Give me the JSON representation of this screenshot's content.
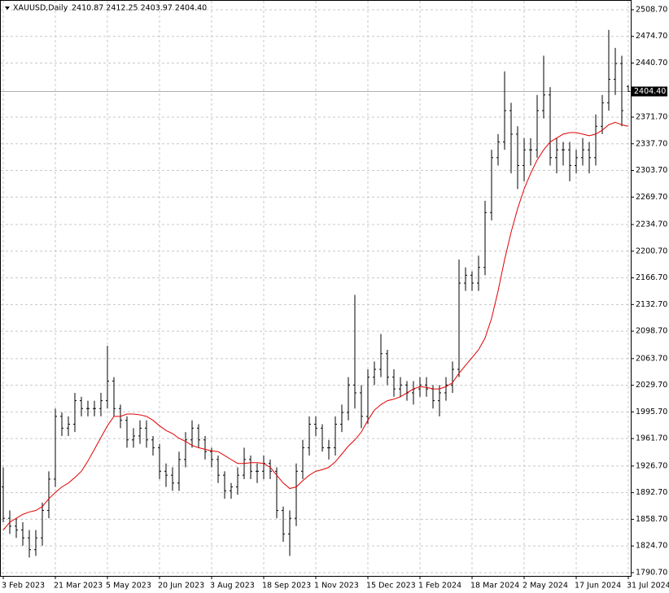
{
  "chart_data": {
    "type": "ohlc",
    "title": "XAUUSD,Daily",
    "subtitle": "2410.87 2412.25 2403.97 2404.40",
    "categories": [
      "3 Feb 2023",
      null,
      null,
      null,
      null,
      null,
      null,
      null,
      "21 Mar 2023",
      null,
      null,
      null,
      null,
      null,
      null,
      null,
      "5 May 2023",
      null,
      null,
      null,
      null,
      null,
      null,
      null,
      "20 Jun 2023",
      null,
      null,
      null,
      null,
      null,
      null,
      null,
      "3 Aug 2023",
      null,
      null,
      null,
      null,
      null,
      null,
      null,
      "18 Sep 2023",
      null,
      null,
      null,
      null,
      null,
      null,
      null,
      "1 Nov 2023",
      null,
      null,
      null,
      null,
      null,
      null,
      null,
      "15 Dec 2023",
      null,
      null,
      null,
      null,
      null,
      null,
      null,
      "1 Feb 2024",
      null,
      null,
      null,
      null,
      null,
      null,
      null,
      "18 Mar 2024",
      null,
      null,
      null,
      null,
      null,
      null,
      null,
      "2 May 2024",
      null,
      null,
      null,
      null,
      null,
      null,
      null,
      "17 Jun 2024",
      null,
      null,
      null,
      null,
      null,
      null,
      null,
      "31 Jul 2024"
    ],
    "open": [
      1900,
      1860,
      1850,
      1845,
      1835,
      1820,
      1835,
      1870,
      1910,
      1990,
      1975,
      1980,
      2010,
      2000,
      2000,
      2000,
      2010,
      2035,
      2000,
      1985,
      1960,
      1965,
      1975,
      1960,
      1950,
      1920,
      1915,
      1905,
      1935,
      1960,
      1975,
      1960,
      1945,
      1935,
      1915,
      1895,
      1900,
      1915,
      1935,
      1920,
      1920,
      1930,
      1920,
      1870,
      1840,
      1860,
      1920,
      1950,
      1980,
      1975,
      1950,
      1950,
      1980,
      1995,
      2030,
      2020,
      1990,
      2040,
      2050,
      2070,
      2040,
      2025,
      2030,
      2020,
      2025,
      2030,
      2025,
      2010,
      2020,
      2030,
      2050,
      2160,
      2170,
      2160,
      2180,
      2250,
      2320,
      2340,
      2380,
      2350,
      2310,
      2330,
      2330,
      2380,
      2400,
      2320,
      2330,
      2330,
      2310,
      2320,
      2330,
      2320,
      2360,
      2390,
      2420,
      2440,
      2410.87
    ],
    "high": [
      1925,
      1870,
      1860,
      1855,
      1845,
      1845,
      1880,
      1920,
      2000,
      1995,
      1990,
      2020,
      2015,
      2010,
      2010,
      2020,
      2080,
      2040,
      2005,
      1990,
      1975,
      1985,
      1985,
      1965,
      1955,
      1930,
      1925,
      1945,
      1970,
      1985,
      1980,
      1965,
      1950,
      1940,
      1920,
      1905,
      1925,
      1950,
      1940,
      1930,
      1940,
      1935,
      1925,
      1875,
      1870,
      1930,
      1960,
      1990,
      1990,
      1980,
      1960,
      1990,
      2005,
      2040,
      2145,
      2030,
      2050,
      2060,
      2095,
      2075,
      2050,
      2040,
      2035,
      2035,
      2040,
      2040,
      2030,
      2030,
      2040,
      2060,
      2190,
      2180,
      2175,
      2195,
      2265,
      2330,
      2350,
      2430,
      2390,
      2360,
      2345,
      2345,
      2400,
      2450,
      2410,
      2345,
      2340,
      2340,
      2330,
      2345,
      2340,
      2375,
      2400,
      2483,
      2460,
      2450,
      2412.25
    ],
    "low": [
      1855,
      1840,
      1835,
      1825,
      1810,
      1812,
      1825,
      1860,
      1900,
      1965,
      1965,
      1970,
      1990,
      1990,
      1990,
      1990,
      2000,
      1990,
      1975,
      1950,
      1950,
      1955,
      1950,
      1940,
      1910,
      1900,
      1895,
      1895,
      1925,
      1950,
      1950,
      1935,
      1925,
      1905,
      1885,
      1885,
      1890,
      1910,
      1910,
      1905,
      1910,
      1910,
      1860,
      1830,
      1812,
      1850,
      1910,
      1940,
      1965,
      1945,
      1935,
      1940,
      1970,
      1985,
      2000,
      1975,
      1980,
      2030,
      2040,
      2030,
      2015,
      2015,
      2010,
      2005,
      2015,
      2015,
      2000,
      1990,
      2010,
      2020,
      2040,
      2150,
      2150,
      2150,
      2170,
      2240,
      2310,
      2330,
      2300,
      2280,
      2290,
      2310,
      2320,
      2370,
      2310,
      2300,
      2310,
      2290,
      2300,
      2310,
      2300,
      2310,
      2350,
      2380,
      2400,
      2360,
      2403.97
    ],
    "close": [
      1860,
      1850,
      1845,
      1835,
      1820,
      1835,
      1870,
      1910,
      1990,
      1975,
      1980,
      2010,
      2000,
      2000,
      2000,
      2010,
      2035,
      2000,
      1985,
      1960,
      1965,
      1975,
      1960,
      1950,
      1920,
      1915,
      1905,
      1935,
      1960,
      1975,
      1960,
      1945,
      1935,
      1915,
      1895,
      1900,
      1915,
      1935,
      1920,
      1920,
      1930,
      1920,
      1870,
      1840,
      1860,
      1920,
      1950,
      1980,
      1975,
      1950,
      1950,
      1980,
      1995,
      2030,
      2020,
      1990,
      2040,
      2050,
      2070,
      2040,
      2025,
      2030,
      2020,
      2025,
      2030,
      2025,
      2010,
      2020,
      2030,
      2050,
      2160,
      2170,
      2160,
      2180,
      2250,
      2320,
      2340,
      2380,
      2350,
      2310,
      2330,
      2330,
      2380,
      2400,
      2320,
      2330,
      2330,
      2310,
      2320,
      2330,
      2320,
      2360,
      2390,
      2420,
      2440,
      2380,
      2404.4
    ],
    "bar_color": "#000000",
    "ma": {
      "color": "#e00000",
      "values": [
        1845,
        1855,
        1860,
        1865,
        1868,
        1870,
        1875,
        1885,
        1893,
        1900,
        1905,
        1912,
        1920,
        1933,
        1948,
        1963,
        1978,
        1990,
        1990,
        1993,
        1993,
        1992,
        1990,
        1985,
        1978,
        1972,
        1968,
        1962,
        1958,
        1953,
        1950,
        1948,
        1946,
        1945,
        1940,
        1935,
        1930,
        1930,
        1931,
        1931,
        1930,
        1925,
        1915,
        1905,
        1898,
        1900,
        1908,
        1915,
        1920,
        1922,
        1925,
        1932,
        1942,
        1952,
        1960,
        1970,
        1985,
        1998,
        2005,
        2010,
        2012,
        2015,
        2020,
        2025,
        2028,
        2027,
        2025,
        2025,
        2028,
        2033,
        2045,
        2055,
        2065,
        2075,
        2090,
        2115,
        2150,
        2190,
        2225,
        2255,
        2280,
        2300,
        2317,
        2330,
        2340,
        2345,
        2350,
        2352,
        2352,
        2350,
        2348,
        2350,
        2355,
        2362,
        2365,
        2362,
        2360
      ]
    },
    "last_price": {
      "value": 2404.4,
      "label": "2404.40"
    },
    "ylim": [
      1786.5,
      2521.1
    ],
    "yticks": [
      {
        "value": 1790.7,
        "label": "1790.70"
      },
      {
        "value": 1824.7,
        "label": "1824.70"
      },
      {
        "value": 1858.7,
        "label": "1858.70"
      },
      {
        "value": 1892.7,
        "label": "1892.70"
      },
      {
        "value": 1926.7,
        "label": "1926.70"
      },
      {
        "value": 1961.7,
        "label": "1961.70"
      },
      {
        "value": 1995.7,
        "label": "1995.70"
      },
      {
        "value": 2029.7,
        "label": "2029.70"
      },
      {
        "value": 2063.7,
        "label": "2063.70"
      },
      {
        "value": 2098.7,
        "label": "2098.70"
      },
      {
        "value": 2132.7,
        "label": "2132.70"
      },
      {
        "value": 2166.7,
        "label": "2166.70"
      },
      {
        "value": 2200.7,
        "label": "2200.70"
      },
      {
        "value": 2234.7,
        "label": "2234.70"
      },
      {
        "value": 2269.7,
        "label": "2269.70"
      },
      {
        "value": 2303.7,
        "label": "2303.70"
      },
      {
        "value": 2337.7,
        "label": "2337.70"
      },
      {
        "value": 2371.7,
        "label": "2371.70"
      },
      {
        "value": 2440.7,
        "label": "2440.70"
      },
      {
        "value": 2474.7,
        "label": "2474.70"
      },
      {
        "value": 2508.7,
        "label": "2508.70"
      }
    ],
    "grid": true
  }
}
